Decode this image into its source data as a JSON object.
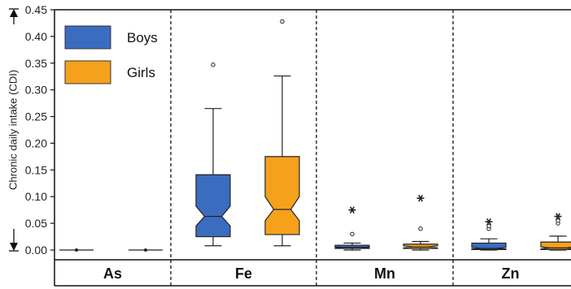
{
  "chart_data": {
    "type": "boxplot",
    "ylabel": "Chronic daily intake (CDI)",
    "ylim": [
      0,
      0.45
    ],
    "yticks": [
      "0.00",
      "0.05",
      "0.10",
      "0.15",
      "0.20",
      "0.25",
      "0.30",
      "0.35",
      "0.40",
      "0.45"
    ],
    "categories": [
      "As",
      "Fe",
      "Mn",
      "Zn"
    ],
    "legend": {
      "placement": "top-left",
      "entries": [
        "Boys",
        "Girls"
      ]
    },
    "series": [
      {
        "name": "Boys",
        "color": "#3b6cc0",
        "boxes": [
          {
            "panel": "As",
            "min": 0.0,
            "q1": 0.0,
            "median": 0.0,
            "q3": 0.0,
            "max": 0.0,
            "notch_low": 0.0,
            "notch_high": 0.0,
            "outliers": [],
            "extremes": []
          },
          {
            "panel": "Fe",
            "min": 0.008,
            "q1": 0.025,
            "median": 0.063,
            "q3": 0.141,
            "max": 0.265,
            "notch_low": 0.045,
            "notch_high": 0.082,
            "outliers": [
              0.347
            ],
            "extremes": []
          },
          {
            "panel": "Mn",
            "min": 0.0,
            "q1": 0.003,
            "median": 0.005,
            "q3": 0.009,
            "max": 0.013,
            "notch_low": 0.004,
            "notch_high": 0.006,
            "outliers": [
              0.03
            ],
            "extremes": [
              0.075
            ]
          },
          {
            "panel": "Zn",
            "min": 0.0,
            "q1": 0.001,
            "median": 0.003,
            "q3": 0.013,
            "max": 0.021,
            "notch_low": 0.002,
            "notch_high": 0.005,
            "outliers": [
              0.04,
              0.045
            ],
            "extremes": [
              0.053
            ]
          }
        ]
      },
      {
        "name": "Girls",
        "color": "#f5a11c",
        "boxes": [
          {
            "panel": "As",
            "min": 0.0,
            "q1": 0.0,
            "median": 0.0,
            "q3": 0.0,
            "max": 0.0,
            "notch_low": 0.0,
            "notch_high": 0.0,
            "outliers": [],
            "extremes": []
          },
          {
            "panel": "Fe",
            "min": 0.008,
            "q1": 0.029,
            "median": 0.076,
            "q3": 0.175,
            "max": 0.326,
            "notch_low": 0.055,
            "notch_high": 0.1,
            "outliers": [
              0.428
            ],
            "extremes": []
          },
          {
            "panel": "Mn",
            "min": 0.0,
            "q1": 0.003,
            "median": 0.006,
            "q3": 0.011,
            "max": 0.016,
            "notch_low": 0.004,
            "notch_high": 0.008,
            "outliers": [
              0.04
            ],
            "extremes": [
              0.097
            ]
          },
          {
            "panel": "Zn",
            "min": 0.0,
            "q1": 0.001,
            "median": 0.004,
            "q3": 0.015,
            "max": 0.026,
            "notch_low": 0.002,
            "notch_high": 0.006,
            "outliers": [
              0.05,
              0.055
            ],
            "extremes": [
              0.063
            ]
          }
        ]
      }
    ]
  }
}
